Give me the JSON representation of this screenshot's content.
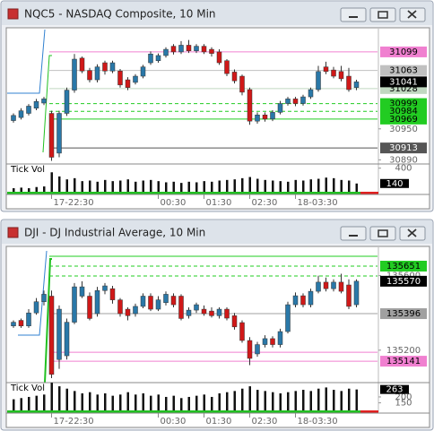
{
  "windows": [
    {
      "title": "NQC5 - NASDAQ Composite, 10 Min",
      "chart": {
        "type": "candlestick",
        "up_color": "#2a78a8",
        "down_color": "#d01818",
        "ylim": [
          30882,
          31144
        ],
        "price_ticks": [
          30950,
          30890
        ],
        "levels": [
          {
            "value": 31099,
            "color": "#f080d0",
            "style": "solid",
            "labeled": true
          },
          {
            "value": 31063,
            "color": "#c0c0c0",
            "style": "solid",
            "labeled": true
          },
          {
            "value": 31028,
            "color": "#c0d8c0",
            "style": "solid",
            "labeled": true
          },
          {
            "value": 30999,
            "color": "#22cc22",
            "style": "dashed",
            "labeled": true
          },
          {
            "value": 30984,
            "color": "#22cc22",
            "style": "dashed",
            "labeled": true
          },
          {
            "value": 30969,
            "color": "#22cc22",
            "style": "solid",
            "labeled": true
          },
          {
            "value": 30913,
            "color": "#555555",
            "style": "solid",
            "labeled": true
          }
        ],
        "last": 31041,
        "candles": [
          {
            "o": 30966,
            "h": 30980,
            "l": 30962,
            "c": 30976
          },
          {
            "o": 30972,
            "h": 30990,
            "l": 30968,
            "c": 30985
          },
          {
            "o": 30980,
            "h": 30998,
            "l": 30976,
            "c": 30994
          },
          {
            "o": 30990,
            "h": 31008,
            "l": 30986,
            "c": 31003
          },
          {
            "o": 31000,
            "h": 31012,
            "l": 30996,
            "c": 31008
          },
          {
            "o": 30980,
            "h": 30985,
            "l": 30888,
            "c": 30895
          },
          {
            "o": 30903,
            "h": 30985,
            "l": 30895,
            "c": 30980
          },
          {
            "o": 30980,
            "h": 31030,
            "l": 30975,
            "c": 31025
          },
          {
            "o": 31025,
            "h": 31095,
            "l": 31020,
            "c": 31085
          },
          {
            "o": 31087,
            "h": 31090,
            "l": 31058,
            "c": 31062
          },
          {
            "o": 31063,
            "h": 31068,
            "l": 31040,
            "c": 31045
          },
          {
            "o": 31045,
            "h": 31075,
            "l": 31040,
            "c": 31070
          },
          {
            "o": 31078,
            "h": 31082,
            "l": 31055,
            "c": 31062
          },
          {
            "o": 31062,
            "h": 31082,
            "l": 31058,
            "c": 31078
          },
          {
            "o": 31062,
            "h": 31066,
            "l": 31030,
            "c": 31035
          },
          {
            "o": 31045,
            "h": 31050,
            "l": 31025,
            "c": 31030
          },
          {
            "o": 31040,
            "h": 31056,
            "l": 31036,
            "c": 31052
          },
          {
            "o": 31052,
            "h": 31074,
            "l": 31048,
            "c": 31070
          },
          {
            "o": 31078,
            "h": 31100,
            "l": 31074,
            "c": 31095
          },
          {
            "o": 31082,
            "h": 31096,
            "l": 31078,
            "c": 31092
          },
          {
            "o": 31092,
            "h": 31108,
            "l": 31088,
            "c": 31104
          },
          {
            "o": 31110,
            "h": 31114,
            "l": 31094,
            "c": 31099
          },
          {
            "o": 31099,
            "h": 31120,
            "l": 31095,
            "c": 31112
          },
          {
            "o": 31112,
            "h": 31122,
            "l": 31097,
            "c": 31101
          },
          {
            "o": 31101,
            "h": 31114,
            "l": 31097,
            "c": 31110
          },
          {
            "o": 31110,
            "h": 31114,
            "l": 31095,
            "c": 31099
          },
          {
            "o": 31104,
            "h": 31108,
            "l": 31090,
            "c": 31096
          },
          {
            "o": 31099,
            "h": 31104,
            "l": 31074,
            "c": 31078
          },
          {
            "o": 31082,
            "h": 31085,
            "l": 31052,
            "c": 31057
          },
          {
            "o": 31060,
            "h": 31065,
            "l": 31038,
            "c": 31043
          },
          {
            "o": 31052,
            "h": 31055,
            "l": 31015,
            "c": 31021
          },
          {
            "o": 31026,
            "h": 31030,
            "l": 30958,
            "c": 30965
          },
          {
            "o": 30965,
            "h": 30982,
            "l": 30960,
            "c": 30977
          },
          {
            "o": 30977,
            "h": 30982,
            "l": 30964,
            "c": 30969
          },
          {
            "o": 30969,
            "h": 30986,
            "l": 30965,
            "c": 30982
          },
          {
            "o": 30982,
            "h": 31004,
            "l": 30978,
            "c": 30999
          },
          {
            "o": 30999,
            "h": 31012,
            "l": 30995,
            "c": 31008
          },
          {
            "o": 31008,
            "h": 31012,
            "l": 30994,
            "c": 30999
          },
          {
            "o": 30999,
            "h": 31016,
            "l": 30995,
            "c": 31012
          },
          {
            "o": 31012,
            "h": 31030,
            "l": 31008,
            "c": 31026
          },
          {
            "o": 31026,
            "h": 31072,
            "l": 31022,
            "c": 31061
          },
          {
            "o": 31070,
            "h": 31080,
            "l": 31056,
            "c": 31061
          },
          {
            "o": 31064,
            "h": 31070,
            "l": 31048,
            "c": 31052
          },
          {
            "o": 31061,
            "h": 31072,
            "l": 31042,
            "c": 31047
          },
          {
            "o": 31052,
            "h": 31068,
            "l": 31022,
            "c": 31026
          },
          {
            "o": 31030,
            "h": 31045,
            "l": 31025,
            "c": 31041
          }
        ],
        "time_ticks": [
          {
            "value": 5,
            "label": "17-22:30"
          },
          {
            "value": 19,
            "label": "00:30"
          },
          {
            "value": 25,
            "label": "01:30"
          },
          {
            "value": 31,
            "label": "02:30"
          },
          {
            "value": 37,
            "label": "18-03:30"
          }
        ],
        "volume": {
          "label": "Tick Vol",
          "ylim": [
            0,
            471
          ],
          "ticks": [
            400
          ],
          "last": 140,
          "values": [
            60,
            70,
            60,
            80,
            90,
            330,
            260,
            210,
            230,
            180,
            190,
            170,
            200,
            180,
            190,
            210,
            170,
            190,
            200,
            180,
            160,
            170,
            150,
            170,
            160,
            180,
            170,
            190,
            200,
            210,
            230,
            250,
            220,
            200,
            190,
            180,
            170,
            200,
            190,
            210,
            220,
            240,
            230,
            200,
            190,
            140
          ]
        }
      }
    },
    {
      "title": "DJI - DJ Industrial Average, 10 Min",
      "chart": {
        "type": "candlestick",
        "up_color": "#2a78a8",
        "down_color": "#d01818",
        "ylim": [
          135026,
          135752
        ],
        "price_ticks": [
          135600,
          135200
        ],
        "levels": [
          {
            "value": 135704,
            "color": "#22cc22",
            "style": "solid",
            "labeled": false
          },
          {
            "value": 135651,
            "color": "#22cc22",
            "style": "dashed",
            "labeled": true
          },
          {
            "value": 135598,
            "color": "#22cc22",
            "style": "dashed",
            "labeled": false
          },
          {
            "value": 135396,
            "color": "#a0a0a0",
            "style": "solid",
            "labeled": true
          },
          {
            "value": 135189,
            "color": "#f080d0",
            "style": "solid",
            "labeled": false
          },
          {
            "value": 135141,
            "color": "#f080d0",
            "style": "solid",
            "labeled": true
          }
        ],
        "last": 135570,
        "candles": [
          {
            "o": 135330,
            "h": 135360,
            "l": 135320,
            "c": 135350
          },
          {
            "o": 135360,
            "h": 135370,
            "l": 135320,
            "c": 135330
          },
          {
            "o": 135330,
            "h": 135420,
            "l": 135320,
            "c": 135400
          },
          {
            "o": 135400,
            "h": 135480,
            "l": 135390,
            "c": 135460
          },
          {
            "o": 135460,
            "h": 135520,
            "l": 135440,
            "c": 135500
          },
          {
            "o": 135490,
            "h": 135520,
            "l": 135050,
            "c": 135070
          },
          {
            "o": 135150,
            "h": 135440,
            "l": 135100,
            "c": 135420
          },
          {
            "o": 135170,
            "h": 135370,
            "l": 135150,
            "c": 135350
          },
          {
            "o": 135350,
            "h": 135560,
            "l": 135340,
            "c": 135540
          },
          {
            "o": 135490,
            "h": 135570,
            "l": 135480,
            "c": 135540
          },
          {
            "o": 135490,
            "h": 135510,
            "l": 135360,
            "c": 135370
          },
          {
            "o": 135396,
            "h": 135540,
            "l": 135380,
            "c": 135520
          },
          {
            "o": 135520,
            "h": 135560,
            "l": 135500,
            "c": 135545
          },
          {
            "o": 135530,
            "h": 135545,
            "l": 135450,
            "c": 135470
          },
          {
            "o": 135470,
            "h": 135480,
            "l": 135380,
            "c": 135396
          },
          {
            "o": 135420,
            "h": 135430,
            "l": 135360,
            "c": 135385
          },
          {
            "o": 135396,
            "h": 135450,
            "l": 135380,
            "c": 135435
          },
          {
            "o": 135435,
            "h": 135505,
            "l": 135425,
            "c": 135490
          },
          {
            "o": 135490,
            "h": 135505,
            "l": 135410,
            "c": 135420
          },
          {
            "o": 135420,
            "h": 135490,
            "l": 135410,
            "c": 135470
          },
          {
            "o": 135455,
            "h": 135515,
            "l": 135440,
            "c": 135500
          },
          {
            "o": 135490,
            "h": 135505,
            "l": 135430,
            "c": 135444
          },
          {
            "o": 135490,
            "h": 135500,
            "l": 135360,
            "c": 135370
          },
          {
            "o": 135385,
            "h": 135430,
            "l": 135370,
            "c": 135415
          },
          {
            "o": 135415,
            "h": 135455,
            "l": 135400,
            "c": 135444
          },
          {
            "o": 135420,
            "h": 135440,
            "l": 135385,
            "c": 135396
          },
          {
            "o": 135410,
            "h": 135430,
            "l": 135375,
            "c": 135385
          },
          {
            "o": 135385,
            "h": 135430,
            "l": 135370,
            "c": 135420
          },
          {
            "o": 135420,
            "h": 135430,
            "l": 135360,
            "c": 135372
          },
          {
            "o": 135385,
            "h": 135400,
            "l": 135310,
            "c": 135325
          },
          {
            "o": 135348,
            "h": 135360,
            "l": 135240,
            "c": 135252
          },
          {
            "o": 135252,
            "h": 135270,
            "l": 135120,
            "c": 135156
          },
          {
            "o": 135180,
            "h": 135245,
            "l": 135165,
            "c": 135230
          },
          {
            "o": 135230,
            "h": 135280,
            "l": 135215,
            "c": 135262
          },
          {
            "o": 135262,
            "h": 135275,
            "l": 135215,
            "c": 135230
          },
          {
            "o": 135230,
            "h": 135315,
            "l": 135215,
            "c": 135300
          },
          {
            "o": 135300,
            "h": 135460,
            "l": 135290,
            "c": 135444
          },
          {
            "o": 135444,
            "h": 135510,
            "l": 135430,
            "c": 135492
          },
          {
            "o": 135492,
            "h": 135505,
            "l": 135430,
            "c": 135444
          },
          {
            "o": 135444,
            "h": 135530,
            "l": 135430,
            "c": 135516
          },
          {
            "o": 135516,
            "h": 135600,
            "l": 135505,
            "c": 135565
          },
          {
            "o": 135565,
            "h": 135590,
            "l": 135515,
            "c": 135530
          },
          {
            "o": 135530,
            "h": 135580,
            "l": 135515,
            "c": 135565
          },
          {
            "o": 135565,
            "h": 135610,
            "l": 135505,
            "c": 135516
          },
          {
            "o": 135550,
            "h": 135580,
            "l": 135420,
            "c": 135435
          },
          {
            "o": 135444,
            "h": 135580,
            "l": 135430,
            "c": 135570
          }
        ],
        "time_ticks": [
          {
            "value": 5,
            "label": "17-22:30"
          },
          {
            "value": 19,
            "label": "00:30"
          },
          {
            "value": 25,
            "label": "01:30"
          },
          {
            "value": 31,
            "label": "02:30"
          },
          {
            "value": 37,
            "label": "18-03:30"
          }
        ],
        "volume": {
          "label": "Tick Vol",
          "ylim": [
            86,
            321
          ],
          "ticks": [
            200,
            150
          ],
          "last": 263,
          "values": [
            180,
            190,
            200,
            210,
            220,
            320,
            290,
            270,
            250,
            230,
            240,
            220,
            230,
            210,
            220,
            240,
            220,
            230,
            210,
            220,
            200,
            210,
            190,
            200,
            210,
            220,
            200,
            230,
            240,
            250,
            270,
            290,
            260,
            250,
            240,
            230,
            240,
            250,
            260,
            250,
            270,
            280,
            260,
            250,
            270,
            263
          ]
        }
      }
    }
  ]
}
